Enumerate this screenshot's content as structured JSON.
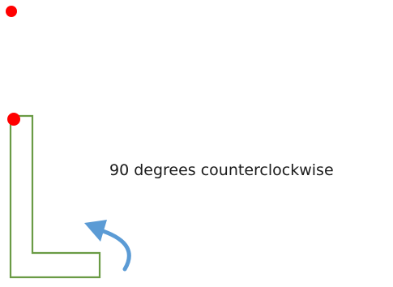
{
  "diagram": {
    "rotation_label": "90 degrees counterclockwise",
    "colors": {
      "shape_outline": "#6a9b45",
      "pivot_point": "#ff0000",
      "rotation_arrow": "#5b9bd5",
      "text": "#1a1a1a"
    },
    "icons": {
      "pivot": "red-dot",
      "rotation": "curved-arrow-counterclockwise"
    }
  }
}
